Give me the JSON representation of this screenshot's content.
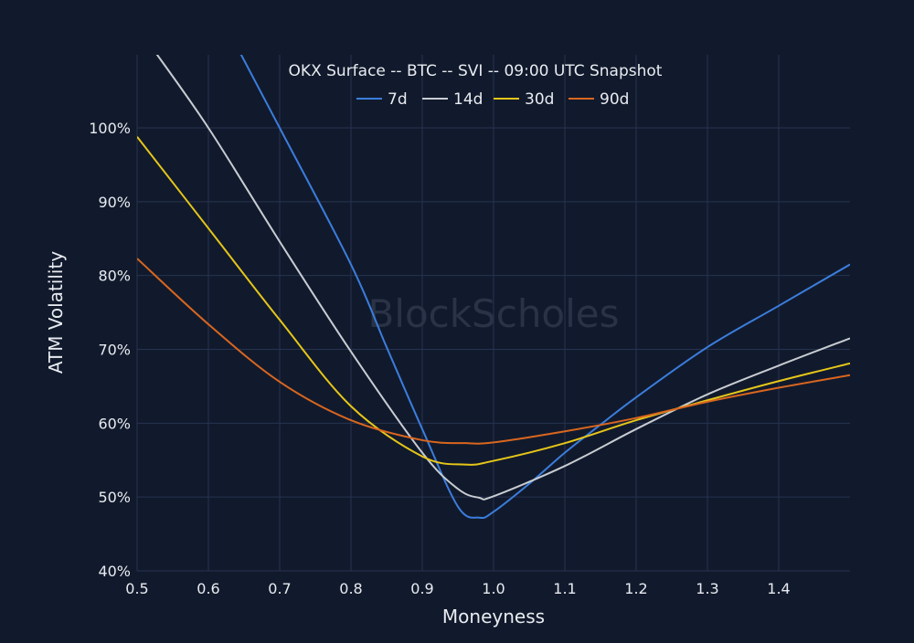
{
  "watermark": "BlockScholes",
  "chart_data": {
    "type": "line",
    "title": "OKX Surface -- BTC -- SVI -- 09:00 UTC Snapshot",
    "xlabel": "Moneyness",
    "ylabel": "ATM Volatility",
    "xlim": [
      0.5,
      1.5
    ],
    "ylim": [
      40,
      110
    ],
    "xticks": [
      0.5,
      0.6,
      0.7,
      0.8,
      0.9,
      1.0,
      1.1,
      1.2,
      1.3,
      1.4
    ],
    "xtick_labels": [
      "0.5",
      "0.6",
      "0.7",
      "0.8",
      "0.9",
      "1.0",
      "1.1",
      "1.2",
      "1.3",
      "1.4"
    ],
    "yticks": [
      40,
      50,
      60,
      70,
      80,
      90,
      100
    ],
    "ytick_labels": [
      "40%",
      "50%",
      "60%",
      "70%",
      "80%",
      "90%",
      "100%"
    ],
    "grid": true,
    "legend_position": "top-center",
    "series": [
      {
        "name": "7d",
        "color": "#3b7ddd",
        "x": [
          0.64,
          0.7,
          0.8,
          0.85,
          0.9,
          0.95,
          0.98,
          1.0,
          1.05,
          1.1,
          1.15,
          1.2,
          1.3,
          1.4,
          1.5
        ],
        "y": [
          111,
          100,
          81.5,
          70.3,
          59.2,
          48.7,
          47.2,
          48.0,
          51.8,
          56.0,
          59.8,
          63.5,
          70.3,
          75.9,
          81.5
        ]
      },
      {
        "name": "14d",
        "color": "#c8ccd2",
        "x": [
          0.52,
          0.6,
          0.7,
          0.8,
          0.9,
          0.95,
          0.98,
          1.0,
          1.1,
          1.2,
          1.3,
          1.4,
          1.5
        ],
        "y": [
          111,
          100,
          84.6,
          69.7,
          56.0,
          51.1,
          49.9,
          50.1,
          54.2,
          59.2,
          63.9,
          67.8,
          71.5
        ]
      },
      {
        "name": "30d",
        "color": "#e6c619",
        "x": [
          0.5,
          0.6,
          0.7,
          0.8,
          0.9,
          0.96,
          1.0,
          1.1,
          1.2,
          1.3,
          1.4,
          1.5
        ],
        "y": [
          98.8,
          86.4,
          74.0,
          62.3,
          55.5,
          54.4,
          54.9,
          57.3,
          60.4,
          63.1,
          65.7,
          68.1
        ]
      },
      {
        "name": "90d",
        "color": "#d9661f",
        "x": [
          0.5,
          0.6,
          0.7,
          0.8,
          0.9,
          0.96,
          1.0,
          1.1,
          1.2,
          1.3,
          1.4,
          1.5
        ],
        "y": [
          82.3,
          73.4,
          65.6,
          60.4,
          57.7,
          57.3,
          57.4,
          58.9,
          60.7,
          62.9,
          64.8,
          66.5
        ]
      }
    ]
  }
}
